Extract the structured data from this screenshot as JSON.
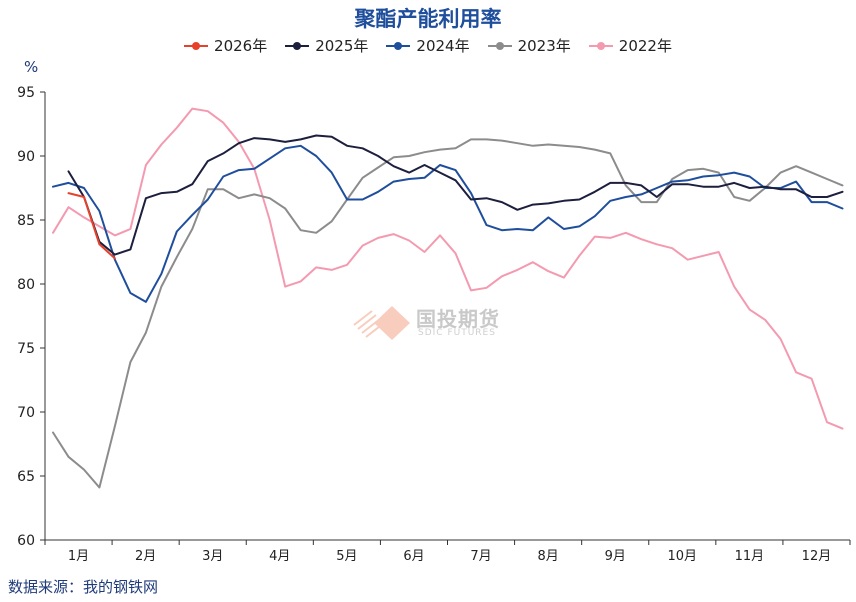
{
  "chart_data": {
    "type": "line",
    "title": "聚酯产能利用率",
    "unit": "%",
    "source": "数据来源：我的钢铁网",
    "watermark": {
      "text": "国投期货",
      "subtext": "SDIC FUTURES"
    },
    "x_labels": [
      "1月",
      "2月",
      "3月",
      "4月",
      "5月",
      "6月",
      "7月",
      "8月",
      "9月",
      "10月",
      "11月",
      "12月"
    ],
    "x_domain": [
      1,
      53
    ],
    "ylim": [
      60,
      95
    ],
    "y_ticks": [
      60,
      65,
      70,
      75,
      80,
      85,
      90,
      95
    ],
    "grid": false,
    "legend_position": "top",
    "series": [
      {
        "name": "2026年",
        "color": "#e8412b",
        "points": [
          [
            2,
            87.1
          ],
          [
            3,
            86.8
          ],
          [
            4,
            83.1
          ],
          [
            5,
            82.0
          ]
        ]
      },
      {
        "name": "2025年",
        "color": "#1c1f3d",
        "points": [
          [
            2,
            88.8
          ],
          [
            3,
            86.8
          ],
          [
            4,
            83.3
          ],
          [
            5,
            82.3
          ],
          [
            6,
            82.7
          ],
          [
            7,
            86.7
          ],
          [
            8,
            87.1
          ],
          [
            9,
            87.2
          ],
          [
            10,
            87.8
          ],
          [
            11,
            89.6
          ],
          [
            12,
            90.2
          ],
          [
            13,
            91.0
          ],
          [
            14,
            91.4
          ],
          [
            15,
            91.3
          ],
          [
            16,
            91.1
          ],
          [
            17,
            91.3
          ],
          [
            18,
            91.6
          ],
          [
            19,
            91.5
          ],
          [
            20,
            90.8
          ],
          [
            21,
            90.6
          ],
          [
            22,
            90.0
          ],
          [
            23,
            89.2
          ],
          [
            24,
            88.7
          ],
          [
            25,
            89.3
          ],
          [
            26,
            88.7
          ],
          [
            27,
            88.1
          ],
          [
            28,
            86.6
          ],
          [
            29,
            86.7
          ],
          [
            30,
            86.4
          ],
          [
            31,
            85.8
          ],
          [
            32,
            86.2
          ],
          [
            33,
            86.3
          ],
          [
            34,
            86.5
          ],
          [
            35,
            86.6
          ],
          [
            36,
            87.2
          ],
          [
            37,
            87.9
          ],
          [
            38,
            87.9
          ],
          [
            39,
            87.7
          ],
          [
            40,
            86.8
          ],
          [
            41,
            87.8
          ],
          [
            42,
            87.8
          ],
          [
            43,
            87.6
          ],
          [
            44,
            87.6
          ],
          [
            45,
            87.9
          ],
          [
            46,
            87.5
          ],
          [
            47,
            87.6
          ],
          [
            48,
            87.4
          ],
          [
            49,
            87.4
          ],
          [
            50,
            86.8
          ],
          [
            51,
            86.8
          ],
          [
            52,
            87.2
          ]
        ]
      },
      {
        "name": "2024年",
        "color": "#1f4e9c",
        "points": [
          [
            1,
            87.6
          ],
          [
            2,
            87.9
          ],
          [
            3,
            87.5
          ],
          [
            4,
            85.7
          ],
          [
            5,
            81.9
          ],
          [
            6,
            79.3
          ],
          [
            7,
            78.6
          ],
          [
            8,
            80.8
          ],
          [
            9,
            84.1
          ],
          [
            10,
            85.4
          ],
          [
            11,
            86.6
          ],
          [
            12,
            88.4
          ],
          [
            13,
            88.9
          ],
          [
            14,
            89.0
          ],
          [
            15,
            89.8
          ],
          [
            16,
            90.6
          ],
          [
            17,
            90.8
          ],
          [
            18,
            90.0
          ],
          [
            19,
            88.7
          ],
          [
            20,
            86.6
          ],
          [
            21,
            86.6
          ],
          [
            22,
            87.2
          ],
          [
            23,
            88.0
          ],
          [
            24,
            88.2
          ],
          [
            25,
            88.3
          ],
          [
            26,
            89.3
          ],
          [
            27,
            88.9
          ],
          [
            28,
            87.1
          ],
          [
            29,
            84.6
          ],
          [
            30,
            84.2
          ],
          [
            31,
            84.3
          ],
          [
            32,
            84.2
          ],
          [
            33,
            85.2
          ],
          [
            34,
            84.3
          ],
          [
            35,
            84.5
          ],
          [
            36,
            85.3
          ],
          [
            37,
            86.5
          ],
          [
            38,
            86.8
          ],
          [
            39,
            87.0
          ],
          [
            40,
            87.5
          ],
          [
            41,
            88.0
          ],
          [
            42,
            88.1
          ],
          [
            43,
            88.4
          ],
          [
            44,
            88.5
          ],
          [
            45,
            88.7
          ],
          [
            46,
            88.4
          ],
          [
            47,
            87.5
          ],
          [
            48,
            87.5
          ],
          [
            49,
            88.0
          ],
          [
            50,
            86.4
          ],
          [
            51,
            86.4
          ],
          [
            52,
            85.9
          ]
        ]
      },
      {
        "name": "2023年",
        "color": "#8c8c8c",
        "points": [
          [
            1,
            68.4
          ],
          [
            2,
            66.5
          ],
          [
            3,
            65.5
          ],
          [
            4,
            64.1
          ],
          [
            5,
            68.9
          ],
          [
            6,
            73.9
          ],
          [
            7,
            76.2
          ],
          [
            8,
            79.8
          ],
          [
            9,
            82.1
          ],
          [
            10,
            84.3
          ],
          [
            11,
            87.4
          ],
          [
            12,
            87.4
          ],
          [
            13,
            86.7
          ],
          [
            14,
            87.0
          ],
          [
            15,
            86.7
          ],
          [
            16,
            85.9
          ],
          [
            17,
            84.2
          ],
          [
            18,
            84.0
          ],
          [
            19,
            84.9
          ],
          [
            20,
            86.6
          ],
          [
            21,
            88.3
          ],
          [
            22,
            89.1
          ],
          [
            23,
            89.9
          ],
          [
            24,
            90.0
          ],
          [
            25,
            90.3
          ],
          [
            26,
            90.5
          ],
          [
            27,
            90.6
          ],
          [
            28,
            91.3
          ],
          [
            29,
            91.3
          ],
          [
            30,
            91.2
          ],
          [
            31,
            91.0
          ],
          [
            32,
            90.8
          ],
          [
            33,
            90.9
          ],
          [
            34,
            90.8
          ],
          [
            35,
            90.7
          ],
          [
            36,
            90.5
          ],
          [
            37,
            90.2
          ],
          [
            38,
            87.7
          ],
          [
            39,
            86.4
          ],
          [
            40,
            86.4
          ],
          [
            41,
            88.2
          ],
          [
            42,
            88.9
          ],
          [
            43,
            89.0
          ],
          [
            44,
            88.7
          ],
          [
            45,
            86.8
          ],
          [
            46,
            86.5
          ],
          [
            47,
            87.5
          ],
          [
            48,
            88.7
          ],
          [
            49,
            89.2
          ],
          [
            50,
            88.7
          ],
          [
            51,
            88.2
          ],
          [
            52,
            87.7
          ]
        ]
      },
      {
        "name": "2022年",
        "color": "#f49ab0",
        "points": [
          [
            1,
            84.0
          ],
          [
            2,
            86.0
          ],
          [
            3,
            85.2
          ],
          [
            4,
            84.5
          ],
          [
            5,
            83.8
          ],
          [
            6,
            84.3
          ],
          [
            7,
            89.3
          ],
          [
            8,
            90.9
          ],
          [
            9,
            92.2
          ],
          [
            10,
            93.7
          ],
          [
            11,
            93.5
          ],
          [
            12,
            92.6
          ],
          [
            13,
            91.1
          ],
          [
            14,
            89.0
          ],
          [
            15,
            85.0
          ],
          [
            16,
            79.8
          ],
          [
            17,
            80.2
          ],
          [
            18,
            81.3
          ],
          [
            19,
            81.1
          ],
          [
            20,
            81.5
          ],
          [
            21,
            83.0
          ],
          [
            22,
            83.6
          ],
          [
            23,
            83.9
          ],
          [
            24,
            83.4
          ],
          [
            25,
            82.5
          ],
          [
            26,
            83.8
          ],
          [
            27,
            82.4
          ],
          [
            28,
            79.5
          ],
          [
            29,
            79.7
          ],
          [
            30,
            80.6
          ],
          [
            31,
            81.1
          ],
          [
            32,
            81.7
          ],
          [
            33,
            81.0
          ],
          [
            34,
            80.5
          ],
          [
            35,
            82.2
          ],
          [
            36,
            83.7
          ],
          [
            37,
            83.6
          ],
          [
            38,
            84.0
          ],
          [
            39,
            83.5
          ],
          [
            40,
            83.1
          ],
          [
            41,
            82.8
          ],
          [
            42,
            81.9
          ],
          [
            43,
            82.2
          ],
          [
            44,
            82.5
          ],
          [
            45,
            79.8
          ],
          [
            46,
            78.0
          ],
          [
            47,
            77.2
          ],
          [
            48,
            75.7
          ],
          [
            49,
            73.1
          ],
          [
            50,
            72.6
          ],
          [
            51,
            69.2
          ],
          [
            52,
            68.7
          ]
        ]
      }
    ]
  }
}
